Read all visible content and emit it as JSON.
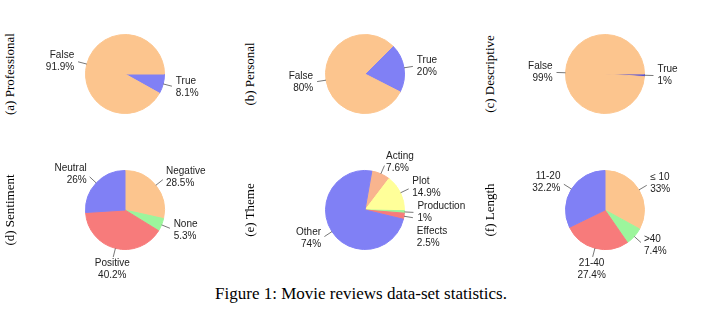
{
  "caption": "Figure 1: Movie reviews data-set statistics.",
  "chart_data": [
    {
      "type": "pie",
      "title": "(a) Professional",
      "categories": [
        "True",
        "False"
      ],
      "values": [
        8.1,
        91.9
      ],
      "value_labels": [
        "8.1%",
        "91.9%"
      ],
      "colors": [
        "#8080f5",
        "#fcc58e"
      ],
      "data_labels": true
    },
    {
      "type": "pie",
      "title": "(b) Personal",
      "categories": [
        "True",
        "False"
      ],
      "values": [
        20,
        80
      ],
      "value_labels": [
        "20%",
        "80%"
      ],
      "colors": [
        "#8080f5",
        "#fcc58e"
      ],
      "data_labels": true
    },
    {
      "type": "pie",
      "title": "(c) Descriptive",
      "categories": [
        "True",
        "False"
      ],
      "values": [
        1,
        99
      ],
      "value_labels": [
        "1%",
        "99%"
      ],
      "colors": [
        "#4040e0",
        "#fcc58e"
      ],
      "data_labels": true
    },
    {
      "type": "pie",
      "title": "(d) Sentiment",
      "categories": [
        "Negative",
        "None",
        "Positive",
        "Neutral"
      ],
      "values": [
        28.5,
        5.3,
        40.2,
        26
      ],
      "value_labels": [
        "28.5%",
        "5.3%",
        "40.2%",
        "26%"
      ],
      "colors": [
        "#fcc58e",
        "#9cf59c",
        "#f77b7b",
        "#8080f5"
      ],
      "data_labels": true
    },
    {
      "type": "pie",
      "title": "(e) Theme",
      "categories": [
        "Acting",
        "Plot",
        "Production",
        "Effects",
        "Other"
      ],
      "values": [
        7.6,
        14.9,
        1,
        2.5,
        74
      ],
      "value_labels": [
        "7.6%",
        "14.9%",
        "1%",
        "2.5%",
        "74%"
      ],
      "colors": [
        "#f9b48e",
        "#ffff99",
        "#9cf59c",
        "#f77b7b",
        "#8080f5"
      ],
      "data_labels": true
    },
    {
      "type": "pie",
      "title": "(f) Length",
      "categories": [
        "≤ 10",
        ">40",
        "21-40",
        "11-20"
      ],
      "values": [
        33,
        7.4,
        27.4,
        32.2
      ],
      "value_labels": [
        "33%",
        "7.4%",
        "27.4%",
        "32.2%"
      ],
      "colors": [
        "#fcc58e",
        "#9cf59c",
        "#f77b7b",
        "#8080f5"
      ],
      "data_labels": true
    }
  ]
}
